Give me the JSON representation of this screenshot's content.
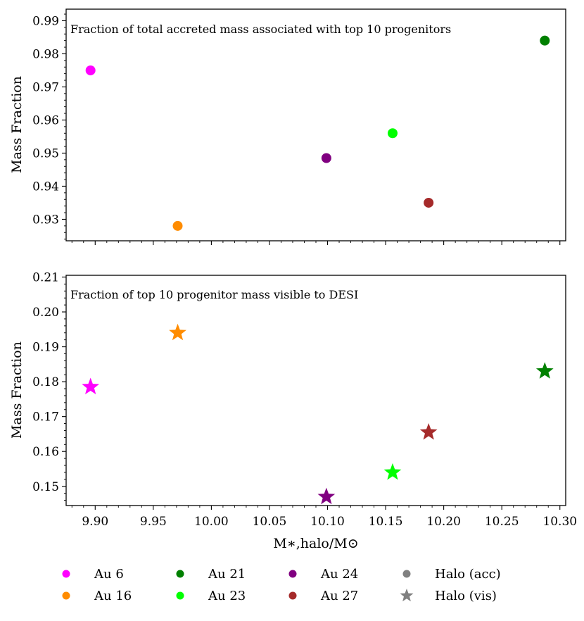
{
  "chart_data": [
    {
      "type": "scatter",
      "marker": "circle",
      "title": "Fraction of total accreted mass associated with top 10 progenitors",
      "ylabel": "Mass Fraction",
      "xlabel": "",
      "xlim": [
        9.875,
        10.305
      ],
      "ylim": [
        0.9235,
        0.9935
      ],
      "yticks": [
        0.93,
        0.94,
        0.95,
        0.96,
        0.97,
        0.98,
        0.99
      ],
      "ytick_labels": [
        "0.93",
        "0.94",
        "0.95",
        "0.96",
        "0.97",
        "0.98",
        "0.99"
      ],
      "series": [
        {
          "name": "Au 6",
          "color": "#ff00ff",
          "x": 9.896,
          "y": 0.975
        },
        {
          "name": "Au 16",
          "color": "#ff8c00",
          "x": 9.971,
          "y": 0.928
        },
        {
          "name": "Au 24",
          "color": "#800080",
          "x": 10.099,
          "y": 0.9485
        },
        {
          "name": "Au 23",
          "color": "#00ff00",
          "x": 10.156,
          "y": 0.956
        },
        {
          "name": "Au 27",
          "color": "#a52a2a",
          "x": 10.187,
          "y": 0.935
        },
        {
          "name": "Au 21",
          "color": "#008000",
          "x": 10.287,
          "y": 0.984
        }
      ]
    },
    {
      "type": "scatter",
      "marker": "star",
      "title": "Fraction of top 10 progenitor mass visible to DESI",
      "ylabel": "Mass Fraction",
      "xlabel": "M∗,halo/M⊙",
      "xlim": [
        9.875,
        10.305
      ],
      "ylim": [
        0.1445,
        0.2105
      ],
      "yticks": [
        0.15,
        0.16,
        0.17,
        0.18,
        0.19,
        0.2,
        0.21
      ],
      "ytick_labels": [
        "0.15",
        "0.16",
        "0.17",
        "0.18",
        "0.19",
        "0.20",
        "0.21"
      ],
      "xticks": [
        9.9,
        9.95,
        10.0,
        10.05,
        10.1,
        10.15,
        10.2,
        10.25,
        10.3
      ],
      "xtick_labels": [
        "9.90",
        "9.95",
        "10.00",
        "10.05",
        "10.10",
        "10.15",
        "10.20",
        "10.25",
        "10.30"
      ],
      "series": [
        {
          "name": "Au 6",
          "color": "#ff00ff",
          "x": 9.896,
          "y": 0.1785
        },
        {
          "name": "Au 16",
          "color": "#ff8c00",
          "x": 9.971,
          "y": 0.194
        },
        {
          "name": "Au 24",
          "color": "#800080",
          "x": 10.099,
          "y": 0.147
        },
        {
          "name": "Au 23",
          "color": "#00ff00",
          "x": 10.156,
          "y": 0.154
        },
        {
          "name": "Au 27",
          "color": "#a52a2a",
          "x": 10.187,
          "y": 0.1655
        },
        {
          "name": "Au 21",
          "color": "#008000",
          "x": 10.287,
          "y": 0.183
        }
      ]
    }
  ],
  "legend": {
    "placement": "bottom",
    "entries": [
      {
        "label": "Au 6",
        "color": "#ff00ff",
        "marker": "circle"
      },
      {
        "label": "Au 16",
        "color": "#ff8c00",
        "marker": "circle"
      },
      {
        "label": "Au 21",
        "color": "#008000",
        "marker": "circle"
      },
      {
        "label": "Au 23",
        "color": "#00ff00",
        "marker": "circle"
      },
      {
        "label": "Au 24",
        "color": "#800080",
        "marker": "circle"
      },
      {
        "label": "Au 27",
        "color": "#a52a2a",
        "marker": "circle"
      },
      {
        "label": "Halo (acc)",
        "color": "#808080",
        "marker": "circle"
      },
      {
        "label": "Halo (vis)",
        "color": "#808080",
        "marker": "star"
      }
    ]
  }
}
